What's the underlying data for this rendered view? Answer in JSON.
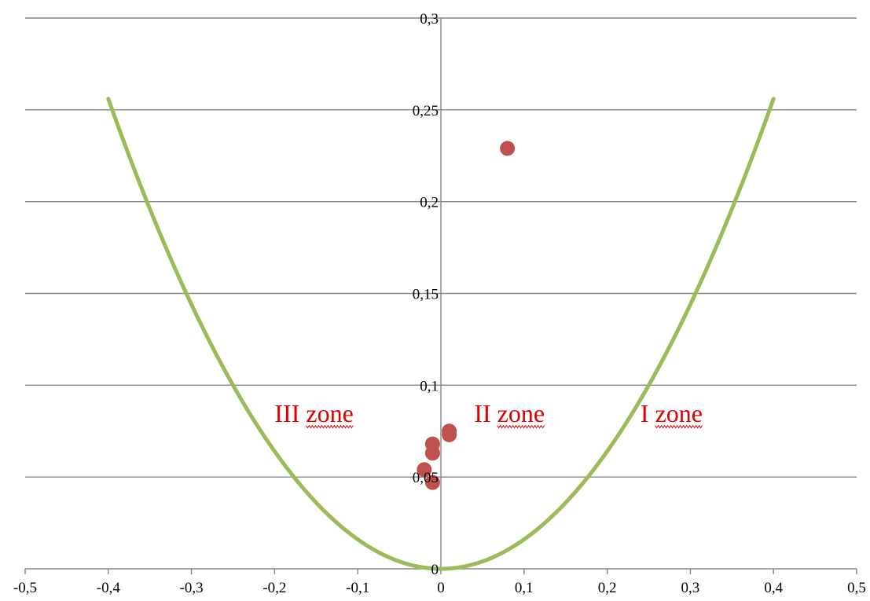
{
  "chart_data": {
    "type": "scatter",
    "title": "",
    "xlabel": "",
    "ylabel": "",
    "xlim": [
      -0.5,
      0.5
    ],
    "ylim": [
      0,
      0.3
    ],
    "grid": "horizontal",
    "x_ticks": [
      "-0,5",
      "-0,4",
      "-0,3",
      "-0,2",
      "-0,1",
      "0",
      "0,1",
      "0,2",
      "0,3",
      "0,4",
      "0,5"
    ],
    "y_ticks": [
      "0",
      "0,05",
      "0,1",
      "0,15",
      "0,2",
      "0,25",
      "0,3"
    ],
    "colors": {
      "curve": "#9bbb59",
      "points": "#c0504d",
      "zone_text": "#e00000",
      "grid": "#868686"
    },
    "curve": {
      "equation": "y = 1.6 * x^2",
      "x_range": [
        -0.4,
        0.4
      ],
      "coefficient": 1.6
    },
    "points": [
      {
        "x": 0.08,
        "y": 0.229
      },
      {
        "x": 0.01,
        "y": 0.075
      },
      {
        "x": 0.01,
        "y": 0.073
      },
      {
        "x": -0.01,
        "y": 0.068
      },
      {
        "x": -0.01,
        "y": 0.063
      },
      {
        "x": -0.02,
        "y": 0.054
      },
      {
        "x": -0.01,
        "y": 0.047
      }
    ],
    "annotations": [
      {
        "text": "III zone",
        "x": -0.2
      },
      {
        "text": "II zone",
        "x": 0.04
      },
      {
        "text": "I zone",
        "x": 0.24
      }
    ]
  }
}
